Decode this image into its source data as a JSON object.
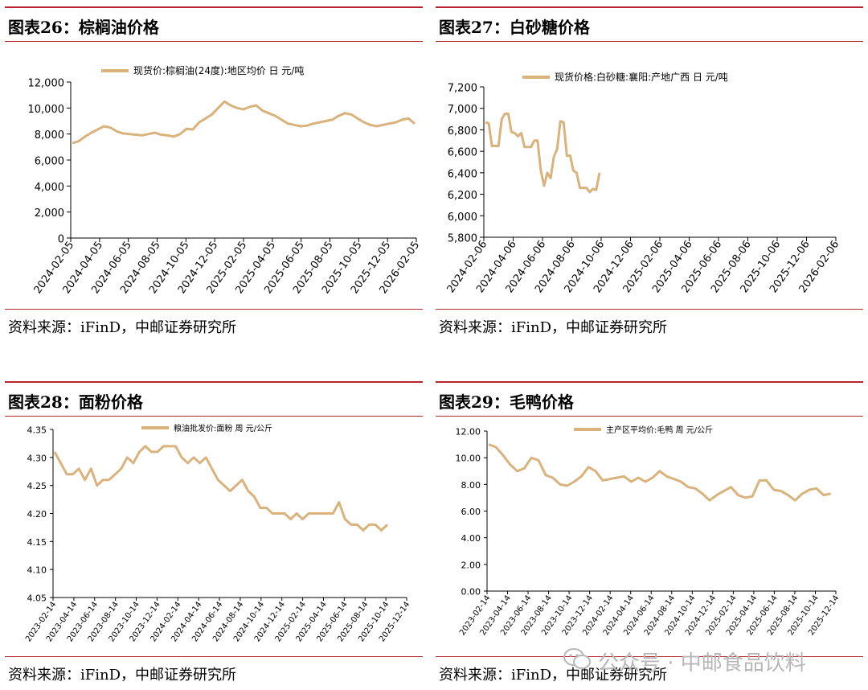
{
  "watermark": {
    "text": "公众号 · 中邮食品饮料"
  },
  "panels": [
    {
      "title": "图表26：棕榈油价格",
      "source": "资料来源：iFinD，中邮证券研究所",
      "chart_data": {
        "type": "line",
        "legend": "现货价:棕榈油(24度):地区均价 日 元/吨",
        "y_ticks": [
          "12,000",
          "10,000",
          "8,000",
          "6,000",
          "4,000",
          "2,000",
          "0"
        ],
        "ylim": [
          0,
          12000
        ],
        "x_ticks": [
          "2024-02-05",
          "2024-04-05",
          "2024-06-05",
          "2024-08-05",
          "2024-10-05",
          "2024-12-05",
          "2025-02-05",
          "2025-04-05",
          "2025-06-05",
          "2025-08-05",
          "2025-10-05",
          "2025-12-05",
          "2026-02-05"
        ],
        "series": [
          {
            "values": [
              7300,
              7450,
              7800,
              8100,
              8350,
              8600,
              8500,
              8200,
              8050,
              8000,
              7950,
              7900,
              8000,
              8100,
              7950,
              7900,
              7800,
              8000,
              8400,
              8350,
              8900,
              9200,
              9500,
              10000,
              10500,
              10200,
              10000,
              9900,
              10100,
              10200,
              9800,
              9600,
              9400,
              9100,
              8800,
              8700,
              8600,
              8650,
              8800,
              8900,
              9000,
              9100,
              9400,
              9600,
              9500,
              9200,
              8900,
              8700,
              8600,
              8700,
              8800,
              8900,
              9100,
              9200,
              8800
            ]
          }
        ]
      }
    },
    {
      "title": "图表27：白砂糖价格",
      "source": "资料来源：iFinD，中邮证券研究所",
      "chart_data": {
        "type": "line",
        "legend": "现货价格:白砂糖:襄阳:产地广西 日 元/吨",
        "y_ticks": [
          "7,200",
          "7,000",
          "6,800",
          "6,600",
          "6,400",
          "6,200",
          "6,000",
          "5,800"
        ],
        "ylim": [
          5800,
          7200
        ],
        "x_ticks": [
          "2024-02-06",
          "2024-04-06",
          "2024-06-06",
          "2024-08-06",
          "2024-10-06",
          "2024-12-06",
          "2025-02-06",
          "2025-04-06",
          "2025-06-06",
          "2025-08-06",
          "2025-10-06",
          "2025-12-06",
          "2026-02-06"
        ],
        "series": [
          {
            "values": [
              6870,
              6860,
              6650,
              6650,
              6650,
              6900,
              6950,
              6950,
              6780,
              6770,
              6740,
              6770,
              6640,
              6640,
              6640,
              6700,
              6700,
              6420,
              6280,
              6400,
              6350,
              6550,
              6620,
              6880,
              6870,
              6560,
              6560,
              6420,
              6400,
              6260,
              6260,
              6260,
              6220,
              6250,
              6240,
              6400
            ]
          }
        ]
      }
    },
    {
      "title": "图表28：面粉价格",
      "source": "资料来源：iFinD，中邮证券研究所",
      "chart_data": {
        "type": "line",
        "legend": "粮油批发价:面粉 周 元/公斤",
        "y_ticks": [
          "4.35",
          "4.30",
          "4.25",
          "4.20",
          "4.15",
          "4.10",
          "4.05"
        ],
        "ylim": [
          4.05,
          4.35
        ],
        "x_ticks": [
          "2023-02-14",
          "2023-04-14",
          "2023-06-14",
          "2023-08-14",
          "2023-10-14",
          "2023-12-14",
          "2024-02-14",
          "2024-04-14",
          "2024-06-14",
          "2024-08-14",
          "2024-10-14",
          "2024-12-14",
          "2025-02-14",
          "2025-04-14",
          "2025-06-14",
          "2025-08-14",
          "2025-10-14",
          "2025-12-14"
        ],
        "series": [
          {
            "values": [
              4.31,
              4.29,
              4.27,
              4.27,
              4.28,
              4.26,
              4.28,
              4.25,
              4.26,
              4.26,
              4.27,
              4.28,
              4.3,
              4.29,
              4.31,
              4.32,
              4.31,
              4.31,
              4.32,
              4.32,
              4.32,
              4.3,
              4.29,
              4.3,
              4.29,
              4.3,
              4.28,
              4.26,
              4.25,
              4.24,
              4.25,
              4.26,
              4.24,
              4.23,
              4.21,
              4.21,
              4.2,
              4.2,
              4.2,
              4.19,
              4.2,
              4.19,
              4.2,
              4.2,
              4.2,
              4.2,
              4.2,
              4.22,
              4.19,
              4.18,
              4.18,
              4.17,
              4.18,
              4.18,
              4.17,
              4.18
            ]
          }
        ]
      }
    },
    {
      "title": "图表29：毛鸭价格",
      "source": "资料来源：iFinD，中邮证券研究所",
      "chart_data": {
        "type": "line",
        "legend": "主产区平均价:毛鸭 周 元/公斤",
        "y_ticks": [
          "12.00",
          "10.00",
          "8.00",
          "6.00",
          "4.00",
          "2.00",
          "0.00"
        ],
        "ylim": [
          0,
          12
        ],
        "x_ticks": [
          "2023-02-14",
          "2023-04-14",
          "2023-06-14",
          "2023-08-14",
          "2023-10-14",
          "2023-12-14",
          "2024-02-14",
          "2024-04-14",
          "2024-06-14",
          "2024-08-14",
          "2024-10-14",
          "2024-12-14",
          "2025-02-14",
          "2025-04-14",
          "2025-06-14",
          "2025-08-14",
          "2025-10-14",
          "2025-12-14"
        ],
        "series": [
          {
            "values": [
              11.0,
              10.8,
              10.2,
              9.5,
              9.0,
              9.2,
              10.0,
              9.8,
              8.7,
              8.5,
              8.0,
              7.9,
              8.2,
              8.6,
              9.3,
              9.0,
              8.3,
              8.4,
              8.5,
              8.6,
              8.2,
              8.5,
              8.2,
              8.5,
              9.0,
              8.6,
              8.4,
              8.2,
              7.8,
              7.7,
              7.3,
              6.8,
              7.2,
              7.5,
              7.8,
              7.2,
              7.0,
              7.1,
              8.3,
              8.3,
              7.6,
              7.5,
              7.2,
              6.8,
              7.3,
              7.6,
              7.7,
              7.2,
              7.3
            ]
          }
        ]
      }
    }
  ]
}
